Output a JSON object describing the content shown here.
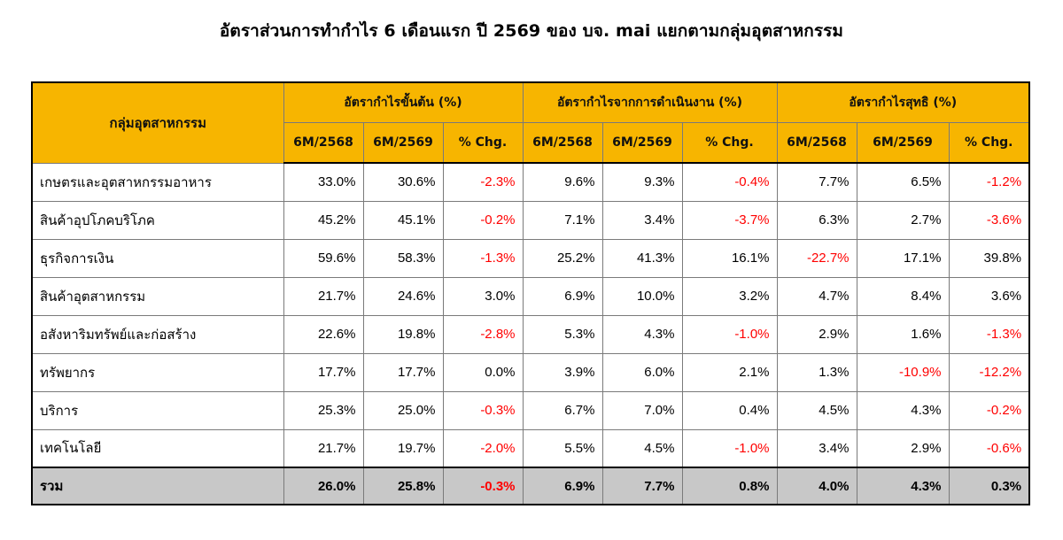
{
  "title": "อัตราส่วนการทำกำไร 6 เดือนแรก ปี 2569 ของ บจ. mai แยกตามกลุ่มอุตสาหกรรม",
  "table": {
    "category_header": "กลุ่มอุตสาหกรรม",
    "groups": [
      {
        "label": "อัตรากำไรขั้นต้น (%)"
      },
      {
        "label": "อัตรากำไรจากการดำเนินงาน (%)"
      },
      {
        "label": "อัตรากำไรสุทธิ (%)"
      }
    ],
    "subheaders": [
      "6M/2568",
      "6M/2569",
      "% Chg."
    ],
    "rows": [
      {
        "category": "เกษตรและอุตสาหกรรมอาหาร",
        "cells": [
          "33.0%",
          "30.6%",
          "-2.3%",
          "9.6%",
          "9.3%",
          "-0.4%",
          "7.7%",
          "6.5%",
          "-1.2%"
        ]
      },
      {
        "category": "สินค้าอุปโภคบริโภค",
        "cells": [
          "45.2%",
          "45.1%",
          "-0.2%",
          "7.1%",
          "3.4%",
          "-3.7%",
          "6.3%",
          "2.7%",
          "-3.6%"
        ]
      },
      {
        "category": "ธุรกิจการเงิน",
        "cells": [
          "59.6%",
          "58.3%",
          "-1.3%",
          "25.2%",
          "41.3%",
          "16.1%",
          "-22.7%",
          "17.1%",
          "39.8%"
        ]
      },
      {
        "category": "สินค้าอุตสาหกรรม",
        "cells": [
          "21.7%",
          "24.6%",
          "3.0%",
          "6.9%",
          "10.0%",
          "3.2%",
          "4.7%",
          "8.4%",
          "3.6%"
        ]
      },
      {
        "category": "อสังหาริมทรัพย์และก่อสร้าง",
        "cells": [
          "22.6%",
          "19.8%",
          "-2.8%",
          "5.3%",
          "4.3%",
          "-1.0%",
          "2.9%",
          "1.6%",
          "-1.3%"
        ]
      },
      {
        "category": "ทรัพยากร",
        "cells": [
          "17.7%",
          "17.7%",
          "0.0%",
          "3.9%",
          "6.0%",
          "2.1%",
          "1.3%",
          "-10.9%",
          "-12.2%"
        ]
      },
      {
        "category": "บริการ",
        "cells": [
          "25.3%",
          "25.0%",
          "-0.3%",
          "6.7%",
          "7.0%",
          "0.4%",
          "4.5%",
          "4.3%",
          "-0.2%"
        ]
      },
      {
        "category": "เทคโนโลยี",
        "cells": [
          "21.7%",
          "19.7%",
          "-2.0%",
          "5.5%",
          "4.5%",
          "-1.0%",
          "3.4%",
          "2.9%",
          "-0.6%"
        ]
      }
    ],
    "total": {
      "category": "รวม",
      "cells": [
        "26.0%",
        "25.8%",
        "-0.3%",
        "6.9%",
        "7.7%",
        "0.8%",
        "4.0%",
        "4.3%",
        "0.3%"
      ]
    }
  },
  "colors": {
    "header_bg": "#f7b500",
    "total_bg": "#c8c8c8",
    "negative_text": "#ff0000",
    "border": "#000000"
  }
}
